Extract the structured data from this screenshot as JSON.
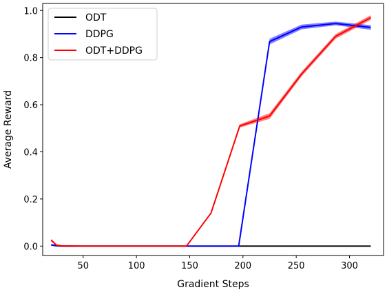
{
  "chart_data": {
    "type": "line",
    "xlabel": "Gradient Steps",
    "ylabel": "Average Reward",
    "xlim": [
      12,
      332
    ],
    "ylim": [
      -0.04,
      1.03
    ],
    "xticks": [
      50,
      100,
      150,
      200,
      250,
      300
    ],
    "yticks": [
      0.0,
      0.2,
      0.4,
      0.6,
      0.8,
      1.0
    ],
    "xtick_labels": [
      "50",
      "100",
      "150",
      "200",
      "250",
      "300"
    ],
    "ytick_labels": [
      "0.0",
      "0.2",
      "0.4",
      "0.6",
      "0.8",
      "1.0"
    ],
    "grid": false,
    "legend_position": "top-left",
    "series": [
      {
        "name": "ODT",
        "color": "#000000",
        "x": [
          20,
          25,
          30,
          50,
          100,
          150,
          200,
          250,
          300,
          320
        ],
        "y": [
          0.005,
          0.001,
          0.0,
          0.0,
          0.0,
          0.0,
          0.0,
          0.0,
          0.0,
          0.0
        ],
        "band": [
          0.001,
          0.001,
          0.0,
          0.0,
          0.0,
          0.0,
          0.0,
          0.0,
          0.0,
          0.0
        ]
      },
      {
        "name": "DDPG",
        "color": "#0000ff",
        "x": [
          20,
          25,
          30,
          50,
          100,
          150,
          196,
          225,
          255,
          287,
          320
        ],
        "y": [
          0.005,
          0.002,
          0.0,
          0.0,
          0.0,
          0.0,
          0.0,
          0.868,
          0.93,
          0.945,
          0.928
        ],
        "band": [
          0.002,
          0.001,
          0.0,
          0.0,
          0.0,
          0.0,
          0.0,
          0.012,
          0.01,
          0.008,
          0.01
        ]
      },
      {
        "name": "ODT+DDPG",
        "color": "#ff0000",
        "x": [
          20,
          25,
          30,
          50,
          100,
          147,
          170,
          197,
          225,
          255,
          287,
          320
        ],
        "y": [
          0.025,
          0.004,
          0.001,
          0.0,
          0.0,
          0.0,
          0.14,
          0.51,
          0.552,
          0.73,
          0.89,
          0.97
        ],
        "band": [
          0.006,
          0.002,
          0.001,
          0.0,
          0.0,
          0.0,
          0.003,
          0.007,
          0.012,
          0.01,
          0.01,
          0.01
        ]
      }
    ]
  }
}
